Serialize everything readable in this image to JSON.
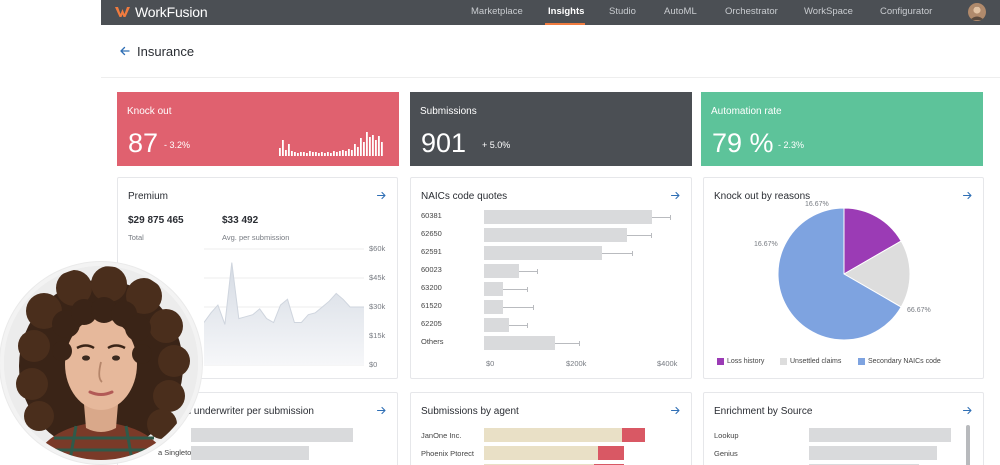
{
  "brand": {
    "name": "WorkFusion",
    "accent": "#f07b3f"
  },
  "nav": {
    "items": [
      "Marketplace",
      "Insights",
      "Studio",
      "AutoML",
      "Orchestrator",
      "WorkSpace",
      "Configurator"
    ],
    "active": "Insights"
  },
  "page": {
    "title": "Insurance"
  },
  "kpis": [
    {
      "title": "Knock out",
      "value": "87",
      "delta": "- 3.2%",
      "color": "#e0616f"
    },
    {
      "title": "Submissions",
      "value": "901",
      "delta": "+ 5.0%",
      "color": "#4b4f54"
    },
    {
      "title": "Automation rate",
      "value": "79 %",
      "delta": "- 2.3%",
      "color": "#5dc39a"
    }
  ],
  "premium": {
    "title": "Premium",
    "total_value": "$29 875 465",
    "total_label": "Total",
    "avg_value": "$33 492",
    "avg_label": "Avg. per submission",
    "y_ticks": [
      "$60k",
      "$45k",
      "$30k",
      "$15k",
      "$0"
    ]
  },
  "naics": {
    "title": "NAICs code quotes",
    "x_ticks": [
      "$0",
      "$200k",
      "$400k"
    ]
  },
  "knockout_reasons": {
    "title": "Knock out by reasons",
    "legend": [
      "Loss history",
      "Unsettled claims",
      "Secondary NAICs code"
    ],
    "colors": [
      "#9b3bb5",
      "#dddddd",
      "#7ea3e0"
    ],
    "labels": [
      "16.67%",
      "16.67%",
      "66.67%"
    ]
  },
  "underwriter": {
    "title": "an underwriter per submission",
    "rows": [
      "a Singleton"
    ]
  },
  "agents": {
    "title": "Submissions by agent",
    "rows": [
      "JanOne Inc.",
      "Phoenix Ptorect"
    ]
  },
  "enrichment": {
    "title": "Enrichment by Source",
    "rows": [
      "Lookup",
      "Genius"
    ]
  },
  "chart_data": [
    {
      "type": "bar",
      "title": "NAICs code quotes",
      "categories": [
        "60381",
        "62650",
        "62591",
        "60023",
        "63200",
        "61520",
        "62205",
        "Others"
      ],
      "values": [
        420,
        340,
        282,
        84,
        46,
        46,
        60,
        168
      ],
      "xlim": [
        0,
        400
      ],
      "x_unit": "$k"
    },
    {
      "type": "pie",
      "title": "Knock out by reasons",
      "categories": [
        "Loss history",
        "Unsettled claims",
        "Secondary NAICs code"
      ],
      "values": [
        16.67,
        16.67,
        66.67
      ]
    },
    {
      "type": "area",
      "title": "Premium",
      "ylim": [
        0,
        60
      ],
      "y_unit": "$k",
      "values": [
        22,
        27,
        31,
        21,
        53,
        24,
        25,
        26,
        29,
        24,
        22,
        31,
        34,
        22,
        22,
        26,
        27,
        30,
        33,
        37,
        34,
        30,
        30,
        30
      ]
    }
  ]
}
